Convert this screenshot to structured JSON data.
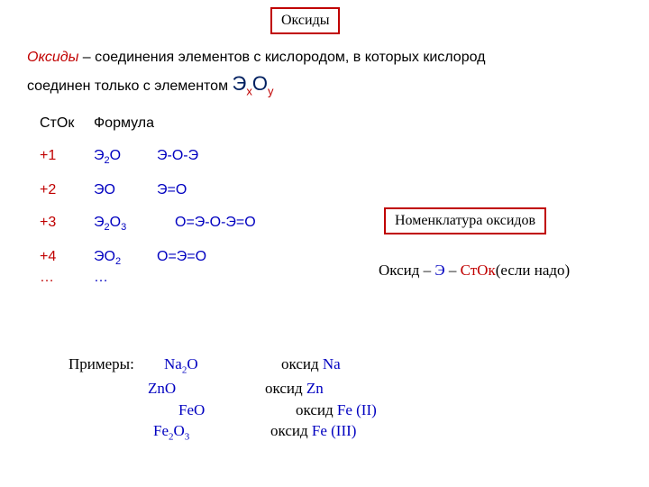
{
  "title": "Оксиды",
  "intro": {
    "lead": "Оксиды",
    "rest1": " – соединения элементов с кислородом, в которых кислород",
    "rest2": "соединен только с элементом ",
    "formE1": "Э",
    "formX": "x",
    "formO": "О",
    "formY": "y"
  },
  "table": {
    "header_stok": "СтОк",
    "header_formula": "Формула",
    "rows": [
      {
        "stok": "+1",
        "formula_html": "Э<sub>2</sub>О",
        "struct": "Э-О-Э"
      },
      {
        "stok": "+2",
        "formula_html": "ЭО",
        "struct": "Э=О"
      },
      {
        "stok": "+3",
        "formula_html": "Э<sub>2</sub>О<sub>3</sub>",
        "struct": "О=Э-О-Э=О"
      },
      {
        "stok": "+4",
        "formula_html": "ЭО<sub>2</sub>",
        "struct": "О=Э=О"
      }
    ],
    "more": "…"
  },
  "nomen": {
    "box": "Номенклатура оксидов",
    "p1": "Оксид – ",
    "e": "Э",
    "dash": " – ",
    "stok": "СтОк",
    "p2": "(если надо)"
  },
  "examples": {
    "label": "Примеры:",
    "rows": [
      {
        "f": "Na<sub>2</sub>O",
        "d_pre": "оксид ",
        "d_el": "Na",
        "d_post": "",
        "pad": "0"
      },
      {
        "f": "ZnO",
        "d_pre": "оксид ",
        "d_el": "Zn",
        "d_post": "",
        "pad": "-18"
      },
      {
        "f": "FeO",
        "d_pre": "оксид ",
        "d_el": "Fe (II)",
        "d_post": "",
        "pad": "16"
      },
      {
        "f": "Fe<sub>2</sub>O<sub>3</sub>",
        "d_pre": "оксид ",
        "d_el": "Fe (III)",
        "d_post": "",
        "pad": "-12"
      }
    ]
  }
}
